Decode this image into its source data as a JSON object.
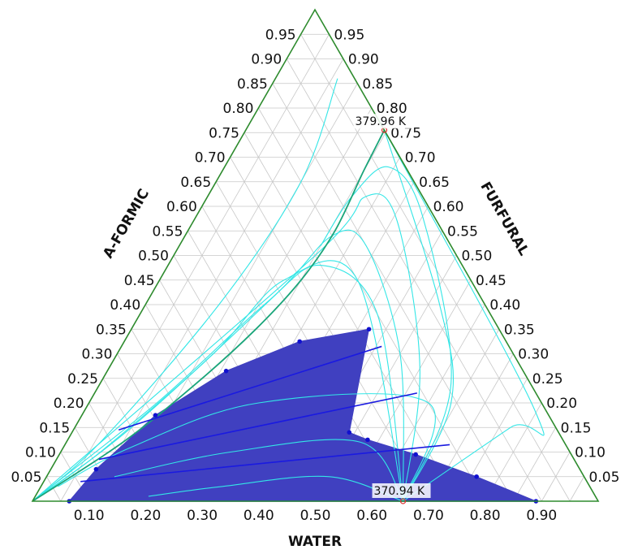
{
  "chart_data": {
    "type": "ternary",
    "components": [
      "WATER",
      "A-FORMIC",
      "FURFURAL"
    ],
    "axis_labels": {
      "water": "WATER",
      "formic": "A-FORMIC",
      "furfural": "FURFURAL"
    },
    "ticks": {
      "water": [
        "0.10",
        "0.20",
        "0.30",
        "0.40",
        "0.50",
        "0.60",
        "0.70",
        "0.80",
        "0.90"
      ],
      "formic": [
        "0.05",
        "0.10",
        "0.15",
        "0.20",
        "0.25",
        "0.30",
        "0.35",
        "0.40",
        "0.45",
        "0.50",
        "0.55",
        "0.60",
        "0.65",
        "0.70",
        "0.75",
        "0.80",
        "0.85",
        "0.90",
        "0.95"
      ],
      "furfural": [
        "0.95",
        "0.90",
        "0.85",
        "0.80",
        "0.75",
        "0.70",
        "0.65",
        "0.60",
        "0.55",
        "0.50",
        "0.45",
        "0.40",
        "0.35",
        "0.30",
        "0.25",
        "0.20",
        "0.15",
        "0.10",
        "0.05"
      ]
    },
    "grid": true,
    "colors": {
      "frame": "#2e8b2e",
      "grid": "#c8c8c8",
      "residue_curve": "#33e6e6",
      "separatrix": "#1aa57a",
      "two_liquid_region": "#4040c0",
      "tie_line": "#1a1ae0",
      "tie_point": "#1010d0",
      "azeotrope": "#e03030"
    },
    "azeotropes": [
      {
        "label": "370.94 K",
        "water": 0.655,
        "formic": 0.0,
        "furfural": 0.345
      },
      {
        "label": "379.96 K",
        "water": 0.245,
        "formic": 0.755,
        "furfural": 0.0
      }
    ],
    "two_liquid_envelope": {
      "water_rich": [
        {
          "water": 0.065,
          "formic": 0.0,
          "furfural": 0.935
        },
        {
          "water": 0.08,
          "formic": 0.065,
          "furfural": 0.855
        },
        {
          "water": 0.13,
          "formic": 0.175,
          "furfural": 0.695
        },
        {
          "water": 0.21,
          "formic": 0.265,
          "furfural": 0.525
        },
        {
          "water": 0.31,
          "formic": 0.325,
          "furfural": 0.365
        },
        {
          "water": 0.42,
          "formic": 0.35,
          "furfural": 0.23
        }
      ],
      "furfural_rich": [
        {
          "water": 0.89,
          "formic": 0.0,
          "furfural": 0.11
        },
        {
          "water": 0.76,
          "formic": 0.05,
          "furfural": 0.19
        },
        {
          "water": 0.63,
          "formic": 0.095,
          "furfural": 0.275
        },
        {
          "water": 0.53,
          "formic": 0.125,
          "furfural": 0.345
        },
        {
          "water": 0.49,
          "formic": 0.14,
          "furfural": 0.37
        }
      ]
    },
    "tie_lines": [
      [
        {
          "water": 0.065,
          "formic": 0.0,
          "furfural": 0.935
        },
        {
          "water": 0.89,
          "formic": 0.0,
          "furfural": 0.11
        }
      ],
      [
        {
          "water": 0.065,
          "formic": 0.04,
          "furfural": 0.895
        },
        {
          "water": 0.68,
          "formic": 0.115,
          "furfural": 0.205
        }
      ],
      [
        {
          "water": 0.075,
          "formic": 0.085,
          "furfural": 0.84
        },
        {
          "water": 0.57,
          "formic": 0.22,
          "furfural": 0.21
        }
      ],
      [
        {
          "water": 0.08,
          "formic": 0.145,
          "furfural": 0.775
        },
        {
          "water": 0.46,
          "formic": 0.315,
          "furfural": 0.225
        }
      ]
    ],
    "separatrix": [
      {
        "water": 0.245,
        "formic": 0.755,
        "furfural": 0.0
      },
      {
        "water": 0.25,
        "formic": 0.67,
        "furfural": 0.08
      },
      {
        "water": 0.26,
        "formic": 0.55,
        "furfural": 0.19
      },
      {
        "water": 0.25,
        "formic": 0.45,
        "furfural": 0.3
      },
      {
        "water": 0.22,
        "formic": 0.35,
        "furfural": 0.43
      },
      {
        "water": 0.17,
        "formic": 0.24,
        "furfural": 0.59
      },
      {
        "water": 0.1,
        "formic": 0.12,
        "furfural": 0.78
      },
      {
        "water": 0.0,
        "formic": 0.0,
        "furfural": 1.0
      }
    ],
    "residue_curves": [
      [
        {
          "water": 0.11,
          "formic": 0.86,
          "furfural": 0.03
        },
        {
          "water": 0.15,
          "formic": 0.65,
          "furfural": 0.2
        },
        {
          "water": 0.13,
          "formic": 0.4,
          "furfural": 0.47
        },
        {
          "water": 0.06,
          "formic": 0.12,
          "furfural": 0.82
        },
        {
          "water": 0.0,
          "formic": 0.0,
          "furfural": 1.0
        }
      ],
      [
        {
          "water": 0.655,
          "formic": 0.0,
          "furfural": 0.345
        },
        {
          "water": 0.35,
          "formic": 0.45,
          "furfural": 0.2
        },
        {
          "water": 0.22,
          "formic": 0.45,
          "furfural": 0.33
        },
        {
          "water": 0.17,
          "formic": 0.3,
          "furfural": 0.53
        },
        {
          "water": 0.07,
          "formic": 0.1,
          "furfural": 0.83
        },
        {
          "water": 0.0,
          "formic": 0.0,
          "furfural": 1.0
        }
      ],
      [
        {
          "water": 0.655,
          "formic": 0.0,
          "furfural": 0.345
        },
        {
          "water": 0.42,
          "formic": 0.38,
          "furfural": 0.2
        },
        {
          "water": 0.27,
          "formic": 0.48,
          "furfural": 0.25
        },
        {
          "water": 0.21,
          "formic": 0.4,
          "furfural": 0.39
        },
        {
          "water": 0.12,
          "formic": 0.2,
          "furfural": 0.68
        },
        {
          "water": 0.0,
          "formic": 0.0,
          "furfural": 1.0
        }
      ],
      [
        {
          "water": 0.655,
          "formic": 0.0,
          "furfural": 0.345
        },
        {
          "water": 0.5,
          "formic": 0.3,
          "furfural": 0.2
        },
        {
          "water": 0.33,
          "formic": 0.52,
          "furfural": 0.15
        },
        {
          "water": 0.26,
          "formic": 0.54,
          "furfural": 0.2
        },
        {
          "water": 0.22,
          "formic": 0.42,
          "furfural": 0.36
        },
        {
          "water": 0.1,
          "formic": 0.15,
          "furfural": 0.75
        },
        {
          "water": 0.0,
          "formic": 0.0,
          "furfural": 1.0
        }
      ],
      [
        {
          "water": 0.655,
          "formic": 0.0,
          "furfural": 0.345
        },
        {
          "water": 0.55,
          "formic": 0.27,
          "furfural": 0.18
        },
        {
          "water": 0.36,
          "formic": 0.57,
          "furfural": 0.07
        },
        {
          "water": 0.28,
          "formic": 0.62,
          "furfural": 0.1
        },
        {
          "water": 0.25,
          "formic": 0.5,
          "furfural": 0.25
        },
        {
          "water": 0.0,
          "formic": 0.0,
          "furfural": 1.0
        }
      ],
      [
        {
          "water": 0.655,
          "formic": 0.0,
          "furfural": 0.345
        },
        {
          "water": 0.62,
          "formic": 0.24,
          "furfural": 0.14
        },
        {
          "water": 0.4,
          "formic": 0.58,
          "furfural": 0.02
        },
        {
          "water": 0.29,
          "formic": 0.68,
          "furfural": 0.03
        },
        {
          "water": 0.255,
          "formic": 0.62,
          "furfural": 0.125
        },
        {
          "water": 0.25,
          "formic": 0.52,
          "furfural": 0.23
        }
      ],
      [
        {
          "water": 0.655,
          "formic": 0.0,
          "furfural": 0.345
        },
        {
          "water": 0.64,
          "formic": 0.2,
          "furfural": 0.16
        },
        {
          "water": 0.52,
          "formic": 0.4,
          "furfural": 0.08
        },
        {
          "water": 0.245,
          "formic": 0.755,
          "furfural": 0.0
        }
      ],
      [
        {
          "water": 0.655,
          "formic": 0.0,
          "furfural": 0.345
        },
        {
          "water": 0.77,
          "formic": 0.15,
          "furfural": 0.08
        },
        {
          "water": 0.8,
          "formic": 0.18,
          "furfural": 0.02
        },
        {
          "water": 0.245,
          "formic": 0.755,
          "furfural": 0.0
        }
      ],
      [
        {
          "water": 0.655,
          "formic": 0.0,
          "furfural": 0.345
        },
        {
          "water": 0.6,
          "formic": 0.2,
          "furfural": 0.2
        },
        {
          "water": 0.3,
          "formic": 0.2,
          "furfural": 0.5
        },
        {
          "water": 0.12,
          "formic": 0.11,
          "furfural": 0.77
        },
        {
          "water": 0.03,
          "formic": 0.03,
          "furfural": 0.94
        }
      ],
      [
        {
          "water": 0.655,
          "formic": 0.0,
          "furfural": 0.345
        },
        {
          "water": 0.52,
          "formic": 0.12,
          "furfural": 0.36
        },
        {
          "water": 0.3,
          "formic": 0.1,
          "furfural": 0.6
        },
        {
          "water": 0.12,
          "formic": 0.05,
          "furfural": 0.83
        }
      ],
      [
        {
          "water": 0.655,
          "formic": 0.0,
          "furfural": 0.345
        },
        {
          "water": 0.5,
          "formic": 0.05,
          "furfural": 0.45
        },
        {
          "water": 0.32,
          "formic": 0.03,
          "furfural": 0.65
        },
        {
          "water": 0.2,
          "formic": 0.01,
          "furfural": 0.79
        }
      ]
    ]
  }
}
